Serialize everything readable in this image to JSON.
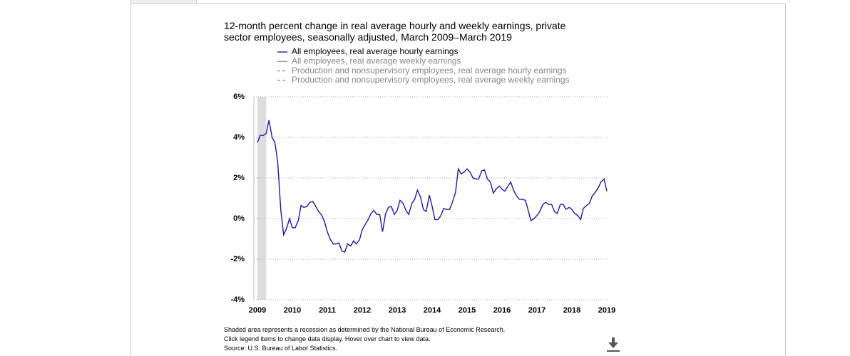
{
  "chart_data": {
    "type": "line",
    "title": "12-month percent change in real average hourly and weekly earnings, private sector employees, seasonally adjusted, March 2009–March 2019",
    "x": [
      2009,
      2009.08,
      2009.17,
      2009.25,
      2009.33,
      2009.42,
      2009.5,
      2009.58,
      2009.67,
      2009.75,
      2009.83,
      2009.92,
      2010,
      2010.08,
      2010.17,
      2010.25,
      2010.33,
      2010.42,
      2010.5,
      2010.58,
      2010.67,
      2010.75,
      2010.83,
      2010.92,
      2011,
      2011.08,
      2011.17,
      2011.25,
      2011.33,
      2011.42,
      2011.5,
      2011.58,
      2011.67,
      2011.75,
      2011.83,
      2011.92,
      2012,
      2012.08,
      2012.17,
      2012.25,
      2012.33,
      2012.42,
      2012.5,
      2012.58,
      2012.67,
      2012.75,
      2012.83,
      2012.92,
      2013,
      2013.08,
      2013.17,
      2013.25,
      2013.33,
      2013.42,
      2013.5,
      2013.58,
      2013.67,
      2013.75,
      2013.83,
      2013.92,
      2014,
      2014.08,
      2014.17,
      2014.25,
      2014.33,
      2014.42,
      2014.5,
      2014.58,
      2014.67,
      2014.75,
      2014.83,
      2014.92,
      2015,
      2015.08,
      2015.17,
      2015.25,
      2015.33,
      2015.42,
      2015.5,
      2015.58,
      2015.67,
      2015.75,
      2015.83,
      2015.92,
      2016,
      2016.08,
      2016.17,
      2016.25,
      2016.33,
      2016.42,
      2016.5,
      2016.58,
      2016.67,
      2016.75,
      2016.83,
      2016.92,
      2017,
      2017.08,
      2017.17,
      2017.25,
      2017.33,
      2017.42,
      2017.5,
      2017.58,
      2017.67,
      2017.75,
      2017.83,
      2017.92,
      2018,
      2018.08,
      2018.17,
      2018.25,
      2018.33,
      2018.42,
      2018.5,
      2018.58,
      2018.67,
      2018.75,
      2018.83,
      2018.92,
      2019
    ],
    "series": [
      {
        "name": "All employees, real average hourly earnings",
        "color": "#1a1aa6",
        "dashed": false,
        "visible": true,
        "values": [
          3.75,
          4.1,
          4.1,
          4.2,
          4.85,
          4.0,
          3.75,
          2.8,
          0.4,
          -0.8,
          -0.5,
          0,
          -0.45,
          -0.45,
          -0.1,
          0.65,
          0.55,
          0.6,
          0.8,
          0.85,
          0.6,
          0.35,
          0.2,
          -0.15,
          -0.65,
          -1.0,
          -1.25,
          -1.25,
          -1.2,
          -1.6,
          -1.65,
          -1.25,
          -1.35,
          -1.1,
          -1.25,
          -1.05,
          -0.55,
          -0.3,
          -0.05,
          0.25,
          0.4,
          0.2,
          0.2,
          -0.65,
          0.25,
          0.55,
          0.6,
          0.2,
          0.4,
          0.9,
          0.75,
          0.4,
          0.2,
          0.75,
          0.95,
          1.4,
          1.05,
          0.45,
          0.35,
          1.15,
          0.6,
          -0.05,
          -0.05,
          0.15,
          0.5,
          0.45,
          0.45,
          0.8,
          1.3,
          2.45,
          2.2,
          2.3,
          2.45,
          2.3,
          2.0,
          1.95,
          1.95,
          2.35,
          2.4,
          1.95,
          1.8,
          1.25,
          1.45,
          1.6,
          1.45,
          1.35,
          1.6,
          1.8,
          1.4,
          1.1,
          0.95,
          0.95,
          0.9,
          0.4,
          -0.1,
          0,
          0.15,
          0.35,
          0.7,
          0.8,
          0.7,
          0.7,
          0.35,
          0.25,
          0.7,
          0.7,
          0.45,
          0.55,
          0.45,
          0.25,
          0.15,
          -0.05,
          0.5,
          0.65,
          0.75,
          1.1,
          1.3,
          1.5,
          1.8,
          1.95,
          1.35
        ]
      },
      {
        "name": "All employees, real average weekly earnings",
        "color": "#999999",
        "dashed": false,
        "visible": false
      },
      {
        "name": "Production and nonsupervisory employees, real average hourly earnings",
        "color": "#999999",
        "dashed": true,
        "visible": false
      },
      {
        "name": "Production and nonsupervisory employees, real average weekly earnings",
        "color": "#999999",
        "dashed": true,
        "visible": false
      }
    ],
    "xlim": [
      2009,
      2019
    ],
    "xticks": [
      2009,
      2010,
      2011,
      2012,
      2013,
      2014,
      2015,
      2016,
      2017,
      2018,
      2019
    ],
    "ylim": [
      -4,
      6
    ],
    "yticks": [
      {
        "value": -4,
        "label": "-4%"
      },
      {
        "value": -2,
        "label": "-2%"
      },
      {
        "value": 0,
        "label": "0%"
      },
      {
        "value": 2,
        "label": "2%"
      },
      {
        "value": 4,
        "label": "4%"
      },
      {
        "value": 6,
        "label": "6%"
      }
    ],
    "grid": true,
    "recession": [
      2009,
      2009.25
    ],
    "notes": [
      "Shaded area represents a recession as determined by the National Bureau of Economic Research.",
      "Click legend items to change data display. Hover over chart to view data.",
      "Source: U.S. Bureau of Labor Statistics."
    ]
  }
}
